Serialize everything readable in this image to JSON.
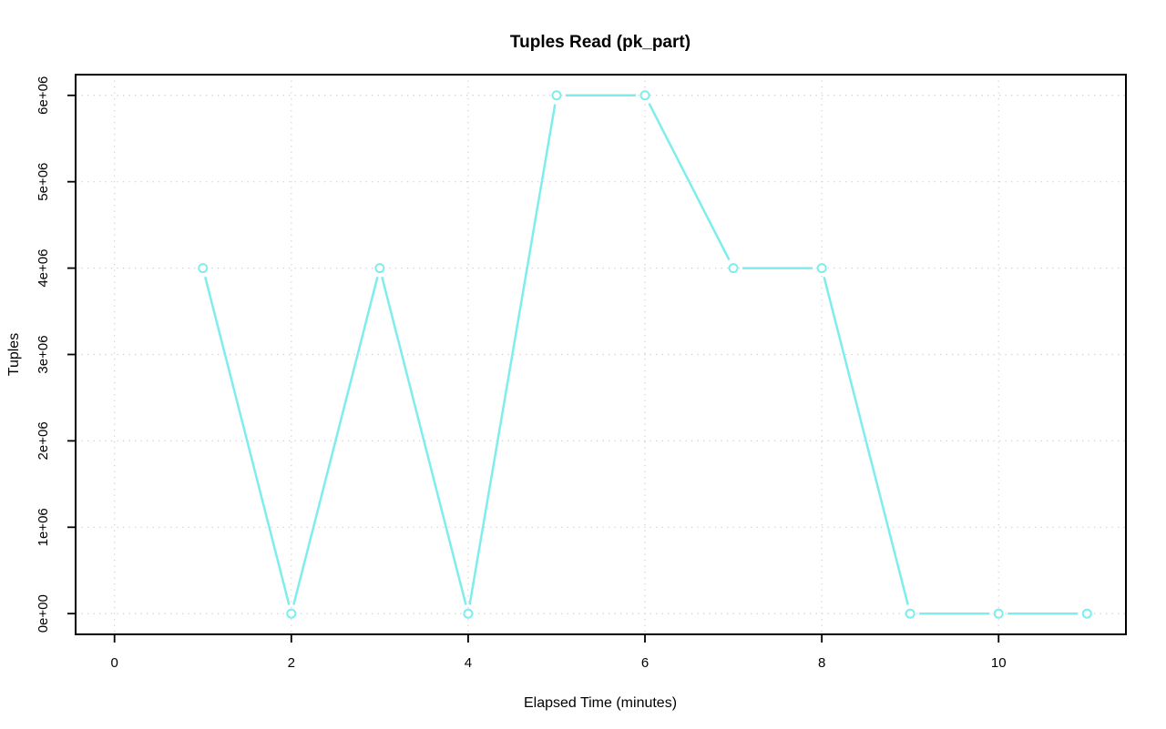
{
  "chart_data": {
    "type": "line",
    "title": "Tuples Read (pk_part)",
    "xlabel": "Elapsed Time (minutes)",
    "ylabel": "Tuples",
    "series": [
      {
        "name": "pk_part",
        "x": [
          1,
          2,
          3,
          4,
          5,
          6,
          7,
          8,
          9,
          10,
          11
        ],
        "values": [
          4000000,
          0,
          4000000,
          0,
          6000000,
          6000000,
          4000000,
          4000000,
          0,
          0,
          0
        ]
      }
    ],
    "xticks": {
      "values": [
        0,
        2,
        4,
        6,
        8,
        10
      ],
      "labels": [
        "0",
        "2",
        "4",
        "6",
        "8",
        "10"
      ]
    },
    "yticks": {
      "values": [
        0,
        1000000,
        2000000,
        3000000,
        4000000,
        5000000,
        6000000
      ],
      "labels": [
        "0e+00",
        "1e+06",
        "2e+06",
        "3e+06",
        "4e+06",
        "5e+06",
        "6e+06"
      ]
    },
    "xlim": [
      -0.44,
      11.44
    ],
    "ylim": [
      -240000,
      6240000
    ],
    "grid": true,
    "grid_style": "dotted",
    "legend": "none",
    "marker": "open-circle",
    "line_style": "segments-with-gaps-at-points",
    "colors": {
      "series": "#7DEDED",
      "grid": "#CFCFCF",
      "axis": "#000000",
      "background": "#FFFFFF",
      "text": "#000000"
    }
  }
}
